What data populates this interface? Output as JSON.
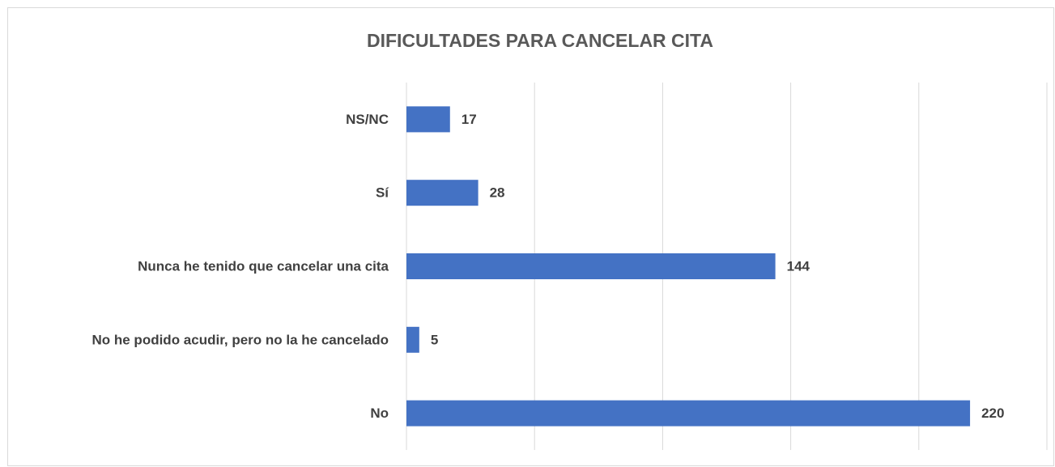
{
  "chart_data": {
    "type": "bar",
    "orientation": "horizontal",
    "title": "DIFICULTADES PARA CANCELAR CITA",
    "categories": [
      "NS/NC",
      "Sí",
      "Nunca he tenido que cancelar una cita",
      "No he podido acudir, pero no la he cancelado",
      "No"
    ],
    "values": [
      17,
      28,
      144,
      5,
      220
    ],
    "color": "#4472c4",
    "xlim": [
      0,
      250
    ],
    "xticks": [
      0,
      50,
      100,
      150,
      200,
      250
    ],
    "grid": true
  }
}
